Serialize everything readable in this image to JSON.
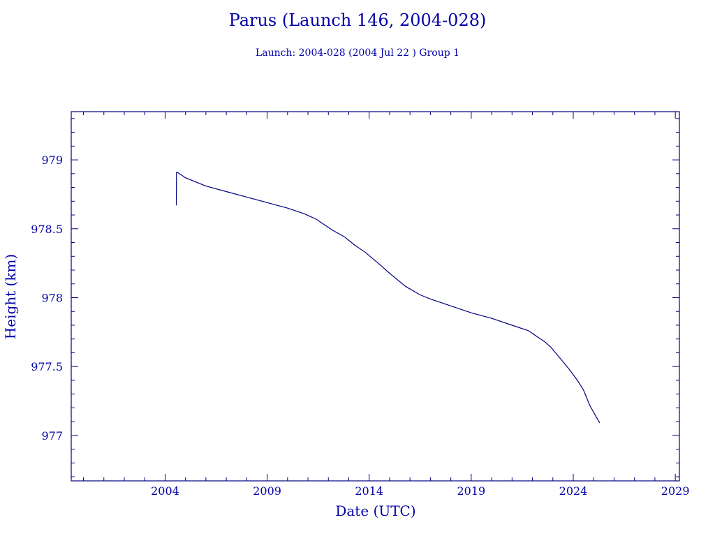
{
  "chart_data": {
    "type": "line",
    "title": "Parus (Launch 146, 2004-028)",
    "subtitle": "Launch: 2004-028  (2004 Jul 22 )  Group 1",
    "xlabel": "Date (UTC)",
    "ylabel": "Height (km)",
    "xlim": [
      1999.4,
      2029.2
    ],
    "ylim": [
      976.67,
      979.35
    ],
    "x_ticks": [
      2004,
      2009,
      2014,
      2019,
      2024,
      2029
    ],
    "x_tick_labels": [
      "2004",
      "2009",
      "2014",
      "2019",
      "2024",
      "2029"
    ],
    "y_ticks": [
      977,
      977.5,
      978,
      978.5,
      979
    ],
    "y_tick_labels": [
      "977",
      "977.5",
      "978",
      "978.5",
      "979"
    ],
    "grid": false,
    "series": [
      {
        "color": "#000080",
        "x": [
          2004.55,
          2004.56,
          2004.6,
          2004.8,
          2005.0,
          2005.5,
          2006.0,
          2007.0,
          2008.0,
          2009.0,
          2010.0,
          2010.8,
          2011.4,
          2011.8,
          2012.2,
          2012.8,
          2013.3,
          2013.8,
          2014.2,
          2014.6,
          2014.9,
          2015.3,
          2015.8,
          2016.5,
          2017.0,
          2018.0,
          2019.0,
          2020.0,
          2021.0,
          2021.8,
          2022.3,
          2022.6,
          2022.9,
          2023.3,
          2023.8,
          2024.2,
          2024.5,
          2024.8,
          2025.1,
          2025.3
        ],
        "y": [
          978.67,
          978.91,
          978.91,
          978.89,
          978.87,
          978.84,
          978.81,
          978.77,
          978.73,
          978.69,
          978.65,
          978.61,
          978.57,
          978.53,
          978.49,
          978.44,
          978.38,
          978.33,
          978.28,
          978.23,
          978.19,
          978.14,
          978.08,
          978.02,
          977.99,
          977.94,
          977.89,
          977.85,
          977.8,
          977.76,
          977.71,
          977.68,
          977.64,
          977.57,
          977.48,
          977.4,
          977.33,
          977.22,
          977.14,
          977.09
        ]
      }
    ]
  }
}
